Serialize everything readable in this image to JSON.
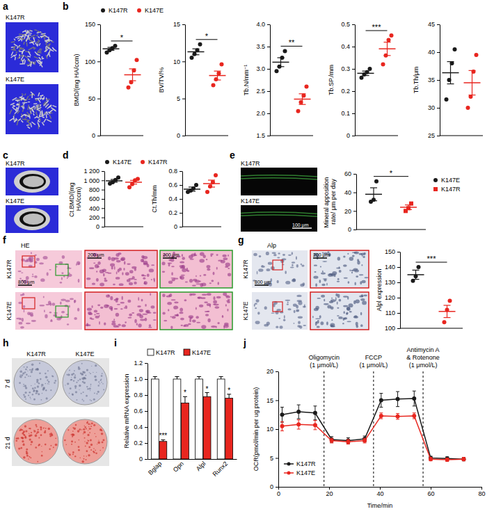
{
  "chart_data": [
    {
      "type": "dot",
      "y_label": "BMD/(mg HA/ccm)",
      "ylim": [
        0,
        150
      ],
      "yticks": [
        0,
        50,
        100,
        150
      ],
      "legend": "top",
      "annotations": [
        "*"
      ],
      "series": [
        {
          "name": "K147R",
          "color": "#1a1a1a",
          "marker": "circle",
          "values": [
            117
          ],
          "errors": [
            2
          ],
          "points": [
            112,
            115,
            118,
            121
          ]
        },
        {
          "name": "K147E",
          "color": "#e8261f",
          "marker": "circle",
          "values": [
            82
          ],
          "errors": [
            8
          ],
          "points": [
            65,
            72,
            88,
            102
          ]
        }
      ]
    },
    {
      "type": "dot",
      "y_label": "BV/TV/%",
      "ylim": [
        0,
        15
      ],
      "yticks": [
        0,
        5,
        10,
        15
      ],
      "annotations": [
        "*"
      ],
      "series": [
        {
          "color": "#1a1a1a",
          "marker": "circle",
          "values": [
            11.3
          ],
          "errors": [
            0.4
          ],
          "points": [
            10.5,
            11,
            11.5,
            12.3
          ]
        },
        {
          "color": "#e8261f",
          "marker": "circle",
          "values": [
            8.1
          ],
          "errors": [
            0.6
          ],
          "points": [
            6.8,
            7.6,
            8.4,
            9.6
          ]
        }
      ]
    },
    {
      "type": "dot",
      "y_label": "Tb.N/mm⁻¹",
      "ylim": [
        1.5,
        4
      ],
      "yticks": [
        1.5,
        {
          "value": 2,
          "label": "2.0"
        },
        2.5,
        {
          "value": 3,
          "label": "3.0"
        },
        3.5,
        {
          "value": 4,
          "label": "4.0"
        }
      ],
      "annotations": [
        "**"
      ],
      "series": [
        {
          "color": "#1a1a1a",
          "marker": "circle",
          "values": [
            3.15
          ],
          "errors": [
            0.1
          ],
          "points": [
            2.95,
            3.05,
            3.25,
            3.4
          ]
        },
        {
          "color": "#e8261f",
          "marker": "circle",
          "values": [
            2.32
          ],
          "errors": [
            0.12
          ],
          "points": [
            2.05,
            2.25,
            2.4,
            2.6
          ]
        }
      ]
    },
    {
      "type": "dot",
      "y_label": "Tb.SP./mm",
      "ylim": [
        0,
        0.5
      ],
      "yticks": [
        0,
        0.1,
        0.2,
        0.3,
        0.4,
        0.5
      ],
      "annotations": [
        "***"
      ],
      "series": [
        {
          "color": "#1a1a1a",
          "marker": "circle",
          "values": [
            0.28
          ],
          "errors": [
            0.01
          ],
          "points": [
            0.26,
            0.275,
            0.285,
            0.3
          ]
        },
        {
          "color": "#e8261f",
          "marker": "circle",
          "values": [
            0.39
          ],
          "errors": [
            0.03
          ],
          "points": [
            0.32,
            0.36,
            0.43,
            0.45
          ]
        }
      ]
    },
    {
      "type": "dot",
      "y_label": "Tb.Th/μm",
      "ylim": [
        25,
        45
      ],
      "yticks": [
        25,
        30,
        35,
        40,
        45
      ],
      "series": [
        {
          "color": "#1a1a1a",
          "marker": "circle",
          "values": [
            36.3
          ],
          "errors": [
            2
          ],
          "points": [
            31.5,
            35,
            38,
            40.5
          ]
        },
        {
          "color": "#e8261f",
          "marker": "circle",
          "values": [
            34.5
          ],
          "errors": [
            2.2
          ],
          "points": [
            30,
            32,
            36.5,
            39.5
          ]
        }
      ]
    },
    {
      "type": "dot",
      "y_label": "Ct.BMD/(mg HA/ccm)",
      "ylim": [
        0,
        1200
      ],
      "yticks": [
        0,
        200,
        400,
        600,
        800,
        {
          "value": 1000,
          "label": "1 000"
        },
        {
          "value": 1200,
          "label": "1 200"
        }
      ],
      "legend": "top",
      "series": [
        {
          "name": "K147E",
          "color": "#1a1a1a",
          "marker": "circle",
          "values": [
            990
          ],
          "errors": [
            30
          ],
          "points": [
            930,
            960,
            1010,
            1060
          ]
        },
        {
          "name": "K147R",
          "color": "#e8261f",
          "marker": "circle",
          "values": [
            960
          ],
          "errors": [
            40
          ],
          "points": [
            850,
            920,
            1000,
            1030
          ]
        }
      ]
    },
    {
      "type": "dot",
      "y_label": "Ct.Th/mm",
      "ylim": [
        0,
        0.8
      ],
      "yticks": [
        0,
        0.2,
        0.4,
        0.6,
        0.8
      ],
      "series": [
        {
          "color": "#1a1a1a",
          "marker": "circle",
          "values": [
            0.54
          ],
          "errors": [
            0.03
          ],
          "points": [
            0.5,
            0.52,
            0.55,
            0.6
          ]
        },
        {
          "color": "#e8261f",
          "marker": "circle",
          "values": [
            0.62
          ],
          "errors": [
            0.05
          ],
          "points": [
            0.5,
            0.58,
            0.64,
            0.74
          ]
        }
      ]
    },
    {
      "type": "dot",
      "y_label": "Mineral apposition rate/ μm per day",
      "ylim": [
        0,
        60
      ],
      "yticks": [
        0,
        20,
        40,
        60
      ],
      "legend": "right",
      "annotations": [
        "*"
      ],
      "series": [
        {
          "name": "K147E",
          "color": "#1a1a1a",
          "marker": "circle",
          "values": [
            38
          ],
          "errors": [
            7
          ],
          "points": [
            30,
            32,
            52
          ]
        },
        {
          "name": "K147R",
          "color": "#e8261f",
          "marker": "square",
          "values": [
            24
          ],
          "errors": [
            2.5
          ],
          "points": [
            20,
            23,
            28
          ]
        }
      ]
    },
    {
      "type": "dot",
      "y_label": "Alpl expression",
      "ylim": [
        100,
        150
      ],
      "yticks": [
        100,
        110,
        120,
        130,
        140,
        150
      ],
      "annotations": [
        "***"
      ],
      "series": [
        {
          "color": "#1a1a1a",
          "marker": "circle",
          "values": [
            135
          ],
          "errors": [
            3
          ],
          "points": [
            131,
            134,
            140
          ]
        },
        {
          "color": "#e8261f",
          "marker": "circle",
          "values": [
            111
          ],
          "errors": [
            4
          ],
          "points": [
            104,
            112,
            118
          ]
        }
      ]
    },
    {
      "type": "bar",
      "y_label": "Relative mRNA expression",
      "categories": [
        "Bglap",
        "Opn",
        "Alpl",
        "Runx2"
      ],
      "ylim": [
        0,
        1.2
      ],
      "yticks": [
        0,
        0.2,
        0.4,
        0.6,
        0.8,
        {
          "value": 1,
          "label": "1.0"
        },
        1.2
      ],
      "legend": "top",
      "series": [
        {
          "name": "K147R",
          "color": "#ffffff",
          "values": [
            1,
            1,
            1,
            1
          ],
          "errors": [
            0.03,
            0.03,
            0.03,
            0.03
          ]
        },
        {
          "name": "K147E",
          "color": "#e8261f",
          "values": [
            0.22,
            0.7,
            0.78,
            0.76
          ],
          "errors": [
            0.02,
            0.08,
            0.05,
            0.05
          ],
          "annotations": [
            "***",
            "*",
            "*",
            "*"
          ]
        }
      ]
    },
    {
      "type": "line",
      "x_label": "Time/min",
      "y_label": "OCR(pmol/min per ug protein)",
      "x": [
        1.5,
        8,
        14.5,
        21,
        27.5,
        34,
        40.5,
        47,
        53.5,
        60,
        66.5,
        73
      ],
      "xlim": [
        0,
        80
      ],
      "xticks": [
        0,
        20,
        40,
        60,
        80
      ],
      "ylim": [
        0,
        20
      ],
      "yticks": [
        0,
        5,
        10,
        15,
        20
      ],
      "legend": "bottom-left",
      "marker": "circle",
      "events": [
        {
          "x": 18,
          "label": [
            "Oligomycin",
            "(1 μmol/L)"
          ]
        },
        {
          "x": 37.5,
          "label": [
            "FCCP",
            "(1 μmol/L)"
          ]
        },
        {
          "x": 57,
          "label": [
            "Antimycin A",
            "& Rotenone",
            "(1 μmol/L)"
          ]
        }
      ],
      "series": [
        {
          "name": "K147R",
          "color": "#1a1a1a",
          "values": [
            12.5,
            13,
            12.8,
            8.2,
            8,
            8.3,
            15,
            15.2,
            15.3,
            5,
            4.9,
            4.8
          ],
          "errors": [
            1.3,
            1.2,
            1.2,
            0.5,
            0.5,
            0.5,
            1.2,
            1.3,
            1.3,
            0.3,
            0.3,
            0.3
          ]
        },
        {
          "name": "K147E",
          "color": "#e8261f",
          "values": [
            10.5,
            10.8,
            10.7,
            8,
            7.8,
            8,
            12.3,
            12.2,
            12.3,
            4.8,
            4.7,
            4.8
          ],
          "errors": [
            0.8,
            0.8,
            0.8,
            0.4,
            0.4,
            0.4,
            0.5,
            0.5,
            0.5,
            0.3,
            0.3,
            0.3
          ]
        }
      ]
    }
  ],
  "figure": {
    "panel_labels": [
      "a",
      "b",
      "c",
      "d",
      "e",
      "f",
      "g",
      "h",
      "i",
      "j"
    ],
    "a": {
      "labels": [
        "K147R",
        "K147E"
      ]
    },
    "c": {
      "labels": [
        "K147R",
        "K147E"
      ]
    },
    "e": {
      "labels": [
        "K147R",
        "K147E"
      ],
      "scale_bar": "100 μm"
    },
    "f": {
      "title": "HE",
      "labels": [
        "K147R",
        "K147E"
      ],
      "scale_bars": [
        "800 μm",
        "200 μm",
        "200 μm"
      ]
    },
    "g": {
      "title": "Alp",
      "labels": [
        "K147R",
        "K147E"
      ],
      "scale_bars": [
        "800 μm",
        "200 μm"
      ]
    },
    "h": {
      "columns": [
        "K147R",
        "K147E"
      ],
      "rows": [
        "7 d",
        "21 d"
      ]
    }
  }
}
